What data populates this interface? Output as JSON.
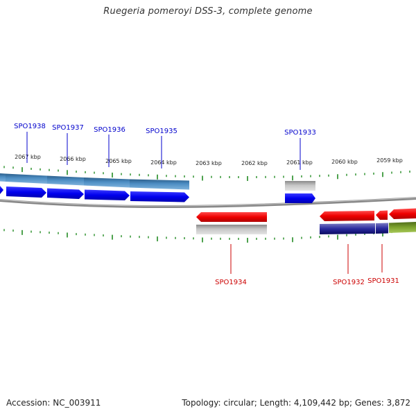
{
  "title": "Ruegeria pomeroyi DSS-3, complete genome",
  "footer": {
    "accession": "Accession: NC_003911",
    "summary": "Topology: circular; Length: 4,109,442 bp; Genes: 3,872"
  },
  "ticks": [
    {
      "label": "2067 kbp"
    },
    {
      "label": "2066 kbp"
    },
    {
      "label": "2065 kbp"
    },
    {
      "label": "2064 kbp"
    },
    {
      "label": "2063 kbp"
    },
    {
      "label": "2062 kbp"
    },
    {
      "label": "2061 kbp"
    },
    {
      "label": "2060 kbp"
    },
    {
      "label": "2059 kbp"
    }
  ],
  "genes": [
    {
      "name": "SPO1938",
      "strand": "+"
    },
    {
      "name": "SPO1937",
      "strand": "+"
    },
    {
      "name": "SPO1936",
      "strand": "+"
    },
    {
      "name": "SPO1935",
      "strand": "+"
    },
    {
      "name": "SPO1933",
      "strand": "+"
    },
    {
      "name": "SPO1934",
      "strand": "-"
    },
    {
      "name": "SPO1932",
      "strand": "-"
    },
    {
      "name": "SPO1931",
      "strand": "-"
    }
  ],
  "colors": {
    "forward_cds": "#0000ee",
    "reverse_cds": "#ee0000",
    "forward_label": "#0000cc",
    "reverse_label": "#cc0000",
    "tick": "#228b22",
    "backbone": "#888888",
    "forward_feature": "#4682b4",
    "grey_feature": "#b4b4b4",
    "navy_feature": "#1a1a8c",
    "olive_feature": "#6b8e23"
  }
}
